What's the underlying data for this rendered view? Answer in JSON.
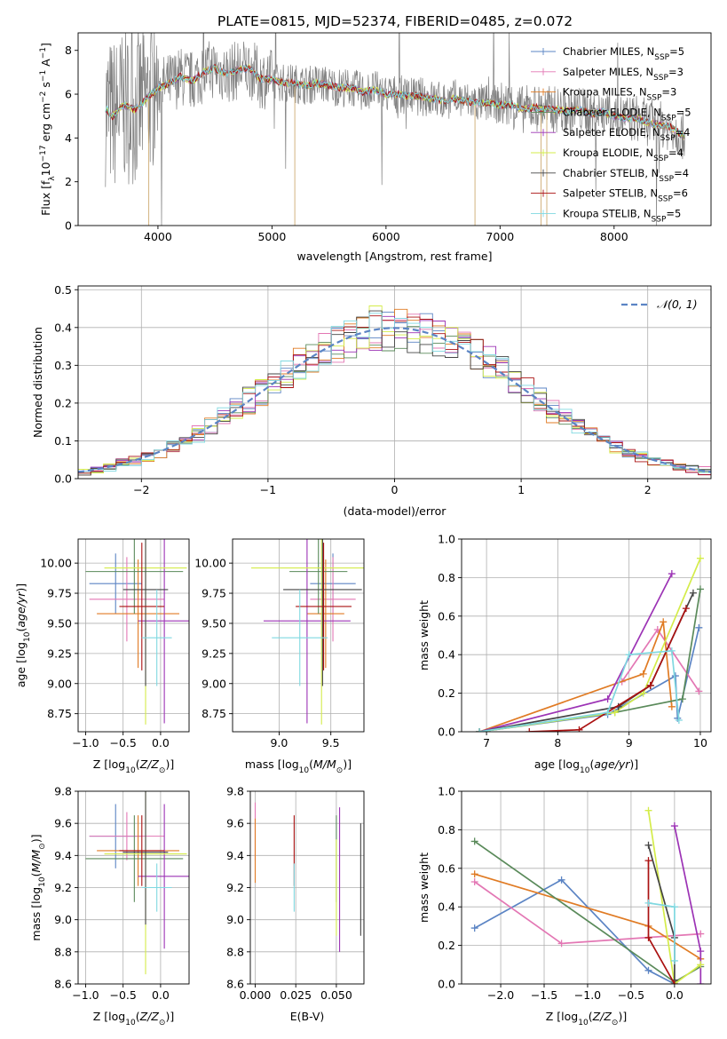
{
  "figure": {
    "title": "PLATE=0815, MJD=52374, FIBERID=0485, z=0.072"
  },
  "colors": {
    "chabrier_miles": "#5b84c4",
    "salpeter_miles": "#e377b4",
    "kroupa_miles": "#e07b24",
    "chabrier_elodie": "#5a8a5a",
    "salpeter_elodie": "#9c33b5",
    "kroupa_elodie": "#d4ec4a",
    "chabrier_stelib": "#444444",
    "salpeter_stelib": "#aa1111",
    "kroupa_stelib": "#7fd8e0",
    "data": "#808080",
    "normal": "#5b84c4"
  },
  "chart_data": [
    {
      "id": "spectrum",
      "type": "line",
      "title": "PLATE=0815, MJD=52374, FIBERID=0485, z=0.072",
      "xlabel": "wavelength [Angstrom, rest frame]",
      "ylabel": "Flux [f",
      "xlim": [
        3300,
        8850
      ],
      "ylim": [
        0,
        8.8
      ],
      "xticks": [
        4000,
        5000,
        6000,
        7000,
        8000
      ],
      "yticks": [
        0,
        2,
        4,
        6,
        8
      ],
      "legend_position": "top-right",
      "legend": [
        {
          "name": "Chabrier MILES, N",
          "n": "5",
          "color": "#5b84c4"
        },
        {
          "name": "Salpeter MILES, N",
          "n": "3",
          "color": "#e377b4"
        },
        {
          "name": "Kroupa MILES, N",
          "n": "3",
          "color": "#e07b24"
        },
        {
          "name": "Chabrier ELODIE, N",
          "n": "5",
          "color": "#5a8a5a"
        },
        {
          "name": "Salpeter ELODIE, N",
          "n": "4",
          "color": "#9c33b5"
        },
        {
          "name": "Kroupa ELODIE, N",
          "n": "4",
          "color": "#d4ec4a"
        },
        {
          "name": "Chabrier STELIB, N",
          "n": "4",
          "color": "#444444"
        },
        {
          "name": "Salpeter STELIB, N",
          "n": "6",
          "color": "#aa1111"
        },
        {
          "name": "Kroupa STELIB, N",
          "n": "5",
          "color": "#7fd8e0"
        }
      ],
      "continuum": {
        "x": [
          3550,
          3600,
          3700,
          3800,
          3900,
          4000,
          4100,
          4200,
          4300,
          4400,
          4500,
          4600,
          4700,
          4800,
          4900,
          5000,
          5100,
          5200,
          5300,
          5400,
          5500,
          5600,
          5700,
          5800,
          5900,
          6000,
          6100,
          6200,
          6300,
          6400,
          6500,
          6600,
          6700,
          6800,
          6900,
          7000,
          7100,
          7200,
          7300,
          7400,
          7500,
          7600,
          7700,
          7800,
          7900,
          8000,
          8100,
          8200,
          8300,
          8400,
          8500,
          8600
        ],
        "y": [
          5.3,
          5.0,
          5.5,
          5.3,
          5.8,
          6.3,
          6.5,
          6.8,
          6.6,
          7.0,
          7.2,
          6.9,
          7.1,
          7.2,
          6.7,
          6.7,
          6.5,
          6.5,
          6.4,
          6.5,
          6.4,
          6.3,
          6.3,
          6.1,
          6.2,
          6.0,
          6.0,
          5.9,
          5.9,
          5.8,
          5.7,
          5.8,
          5.7,
          5.6,
          5.6,
          5.5,
          5.5,
          5.3,
          5.4,
          5.3,
          5.3,
          5.2,
          5.3,
          5.1,
          5.2,
          5.0,
          4.9,
          4.9,
          4.7,
          4.6,
          4.5,
          4.1
        ]
      }
    },
    {
      "id": "residuals",
      "type": "line",
      "xlabel": "(data-model)/error",
      "ylabel": "Normed distribution",
      "xlim": [
        -2.5,
        2.5
      ],
      "ylim": [
        0,
        0.51
      ],
      "xticks": [
        -2,
        -1,
        0,
        1,
        2
      ],
      "yticks": [
        0.0,
        0.1,
        0.2,
        0.3,
        0.4,
        0.5
      ],
      "grid": true,
      "legend_position": "top-right",
      "legend": [
        {
          "name": "𝒩(0, 1)",
          "color": "#5b84c4",
          "style": "dashed"
        }
      ],
      "bin_width": 0.1
    },
    {
      "id": "age_vs_Z",
      "type": "scatter",
      "xlabel": "Z [log",
      "ylabel": "age  [log",
      "xlim": [
        -1.1,
        0.38
      ],
      "ylim": [
        8.6,
        10.2
      ],
      "xticks": [
        -1.0,
        -0.5,
        0.0
      ],
      "yticks": [
        8.75,
        9.0,
        9.25,
        9.5,
        9.75,
        10.0
      ],
      "grid": true,
      "points": [
        {
          "model": "Chabrier MILES",
          "x": -0.6,
          "y": 9.83,
          "xerr": 0.35,
          "yerr": 0.25,
          "color": "#5b84c4"
        },
        {
          "model": "Salpeter MILES",
          "x": -0.45,
          "y": 9.7,
          "xerr": 0.5,
          "yerr": 0.35,
          "color": "#e377b4"
        },
        {
          "model": "Kroupa MILES",
          "x": -0.3,
          "y": 9.58,
          "xerr": 0.55,
          "yerr": 0.45,
          "color": "#e07b24"
        },
        {
          "model": "Chabrier ELODIE",
          "x": -0.35,
          "y": 9.93,
          "xerr": 0.65,
          "yerr": 0.35,
          "color": "#5a8a5a"
        },
        {
          "model": "Salpeter ELODIE",
          "x": 0.05,
          "y": 9.52,
          "xerr": 0.35,
          "yerr": 0.85,
          "color": "#9c33b5"
        },
        {
          "model": "Kroupa ELODIE",
          "x": -0.2,
          "y": 9.96,
          "xerr": 0.55,
          "yerr": 1.3,
          "color": "#d4ec4a"
        },
        {
          "model": "Chabrier STELIB",
          "x": -0.2,
          "y": 9.78,
          "xerr": 0.3,
          "yerr": 0.8,
          "color": "#444444"
        },
        {
          "model": "Salpeter STELIB",
          "x": -0.25,
          "y": 9.64,
          "xerr": 0.3,
          "yerr": 0.53,
          "color": "#aa1111"
        },
        {
          "model": "Kroupa STELIB",
          "x": -0.05,
          "y": 9.38,
          "xerr": 0.2,
          "yerr": 0.4,
          "color": "#7fd8e0"
        }
      ]
    },
    {
      "id": "age_vs_mass",
      "type": "scatter",
      "xlabel": "mass [log",
      "xlim": [
        8.55,
        9.82
      ],
      "ylim": [
        8.6,
        10.2
      ],
      "xticks": [
        9.0,
        9.5
      ],
      "yticks": [
        8.75,
        9.0,
        9.25,
        9.5,
        9.75,
        10.0
      ],
      "grid": true,
      "points": [
        {
          "model": "Chabrier MILES",
          "x": 9.52,
          "y": 9.83,
          "xerr": 0.22,
          "yerr": 0.25,
          "color": "#5b84c4"
        },
        {
          "model": "Salpeter MILES",
          "x": 9.52,
          "y": 9.7,
          "xerr": 0.22,
          "yerr": 0.35,
          "color": "#e377b4"
        },
        {
          "model": "Kroupa MILES",
          "x": 9.45,
          "y": 9.58,
          "xerr": 0.18,
          "yerr": 0.45,
          "color": "#e07b24"
        },
        {
          "model": "Chabrier ELODIE",
          "x": 9.38,
          "y": 9.93,
          "xerr": 0.28,
          "yerr": 0.35,
          "color": "#5a8a5a"
        },
        {
          "model": "Salpeter ELODIE",
          "x": 9.27,
          "y": 9.52,
          "xerr": 0.42,
          "yerr": 0.85,
          "color": "#9c33b5"
        },
        {
          "model": "Kroupa ELODIE",
          "x": 9.41,
          "y": 9.96,
          "xerr": 0.68,
          "yerr": 1.3,
          "color": "#d4ec4a"
        },
        {
          "model": "Chabrier STELIB",
          "x": 9.42,
          "y": 9.78,
          "xerr": 0.38,
          "yerr": 0.8,
          "color": "#444444"
        },
        {
          "model": "Salpeter STELIB",
          "x": 9.43,
          "y": 9.64,
          "xerr": 0.27,
          "yerr": 0.53,
          "color": "#aa1111"
        },
        {
          "model": "Kroupa STELIB",
          "x": 9.2,
          "y": 9.38,
          "xerr": 0.27,
          "yerr": 0.4,
          "color": "#7fd8e0"
        }
      ]
    },
    {
      "id": "weight_vs_age",
      "type": "line",
      "xlabel": "age  [log",
      "ylabel": "mass weight",
      "xlim": [
        6.65,
        10.15
      ],
      "ylim": [
        0,
        1.0
      ],
      "xticks": [
        7,
        8,
        9,
        10
      ],
      "yticks": [
        0.0,
        0.2,
        0.4,
        0.6,
        0.8,
        1.0
      ],
      "grid": true,
      "series": [
        {
          "model": "Chabrier MILES",
          "color": "#5b84c4",
          "x": [
            6.9,
            8.7,
            9.65,
            9.68,
            9.98
          ],
          "y": [
            0.0,
            0.09,
            0.29,
            0.07,
            0.54
          ]
        },
        {
          "model": "Salpeter MILES",
          "color": "#e377b4",
          "x": [
            8.9,
            9.4,
            9.98
          ],
          "y": [
            0.26,
            0.53,
            0.21
          ]
        },
        {
          "model": "Kroupa MILES",
          "color": "#e07b24",
          "x": [
            6.9,
            9.2,
            9.48,
            9.6
          ],
          "y": [
            0.0,
            0.3,
            0.57,
            0.13
          ]
        },
        {
          "model": "Chabrier ELODIE",
          "color": "#5a8a5a",
          "x": [
            6.9,
            8.8,
            9.75,
            10.0
          ],
          "y": [
            0.0,
            0.1,
            0.17,
            0.74
          ]
        },
        {
          "model": "Salpeter ELODIE",
          "color": "#9c33b5",
          "x": [
            6.9,
            8.7,
            9.6
          ],
          "y": [
            0.0,
            0.17,
            0.82
          ]
        },
        {
          "model": "Kroupa ELODIE",
          "color": "#d4ec4a",
          "x": [
            6.9,
            8.8,
            9.2,
            10.0
          ],
          "y": [
            0.0,
            0.1,
            0.2,
            0.9
          ]
        },
        {
          "model": "Chabrier STELIB",
          "color": "#444444",
          "x": [
            6.9,
            8.85,
            9.3,
            9.9
          ],
          "y": [
            0.0,
            0.13,
            0.24,
            0.72
          ]
        },
        {
          "model": "Salpeter STELIB",
          "color": "#aa1111",
          "x": [
            7.6,
            8.3,
            9.3,
            9.8
          ],
          "y": [
            0.0,
            0.01,
            0.24,
            0.64
          ]
        },
        {
          "model": "Kroupa STELIB",
          "color": "#7fd8e0",
          "x": [
            6.9,
            8.7,
            9.0,
            9.6,
            9.7
          ],
          "y": [
            0.0,
            0.1,
            0.4,
            0.42,
            0.06
          ]
        }
      ]
    },
    {
      "id": "mass_vs_Z",
      "type": "scatter",
      "xlabel": "Z [log",
      "ylabel": "mass [log",
      "xlim": [
        -1.1,
        0.38
      ],
      "ylim": [
        8.6,
        9.8
      ],
      "xticks": [
        -1.0,
        -0.5,
        0.0
      ],
      "yticks": [
        8.6,
        8.8,
        9.0,
        9.2,
        9.4,
        9.6,
        9.8
      ],
      "grid": true,
      "points": [
        {
          "model": "Chabrier MILES",
          "x": -0.6,
          "y": 9.52,
          "xerr": 0.35,
          "yerr": 0.2,
          "color": "#5b84c4"
        },
        {
          "model": "Salpeter MILES",
          "x": -0.45,
          "y": 9.52,
          "xerr": 0.5,
          "yerr": 0.15,
          "color": "#e377b4"
        },
        {
          "model": "Kroupa MILES",
          "x": -0.3,
          "y": 9.43,
          "xerr": 0.55,
          "yerr": 0.22,
          "color": "#e07b24"
        },
        {
          "model": "Chabrier ELODIE",
          "x": -0.35,
          "y": 9.38,
          "xerr": 0.65,
          "yerr": 0.27,
          "color": "#5a8a5a"
        },
        {
          "model": "Salpeter ELODIE",
          "x": 0.05,
          "y": 9.27,
          "xerr": 0.35,
          "yerr": 0.45,
          "color": "#9c33b5"
        },
        {
          "model": "Kroupa ELODIE",
          "x": -0.2,
          "y": 9.41,
          "xerr": 0.55,
          "yerr": 0.75,
          "color": "#d4ec4a"
        },
        {
          "model": "Chabrier STELIB",
          "x": -0.2,
          "y": 9.42,
          "xerr": 0.3,
          "yerr": 0.45,
          "color": "#444444"
        },
        {
          "model": "Salpeter STELIB",
          "x": -0.25,
          "y": 9.43,
          "xerr": 0.3,
          "yerr": 0.22,
          "color": "#aa1111"
        },
        {
          "model": "Kroupa STELIB",
          "x": -0.05,
          "y": 9.2,
          "xerr": 0.2,
          "yerr": 0.15,
          "color": "#7fd8e0"
        }
      ]
    },
    {
      "id": "mass_vs_ebv",
      "type": "scatter",
      "xlabel": "E(B-V)",
      "xlim": [
        -0.003,
        0.067
      ],
      "ylim": [
        8.6,
        9.8
      ],
      "xticks": [
        0.0,
        0.025,
        0.05
      ],
      "xtick_labels": [
        "0.000",
        "0.025",
        "0.050"
      ],
      "yticks": [
        8.6,
        8.8,
        9.0,
        9.2,
        9.4,
        9.6,
        9.8
      ],
      "grid": true,
      "points": [
        {
          "model": "Salpeter MILES",
          "x": 0.0,
          "y": 9.55,
          "yerr": 0.18,
          "color": "#e377b4"
        },
        {
          "model": "Kroupa MILES",
          "x": 0.0,
          "y": 9.43,
          "yerr": 0.2,
          "color": "#e07b24"
        },
        {
          "model": "Salpeter STELIB",
          "x": 0.024,
          "y": 9.43,
          "yerr": 0.22,
          "color": "#aa1111"
        },
        {
          "model": "Kroupa STELIB",
          "x": 0.024,
          "y": 9.2,
          "yerr": 0.15,
          "color": "#7fd8e0"
        },
        {
          "model": "Chabrier ELODIE",
          "x": 0.05,
          "y": 9.38,
          "yerr": 0.27,
          "color": "#5a8a5a"
        },
        {
          "model": "Kroupa ELODIE",
          "x": 0.05,
          "y": 9.2,
          "yerr": 0.3,
          "color": "#d4ec4a"
        },
        {
          "model": "Salpeter ELODIE",
          "x": 0.052,
          "y": 9.25,
          "yerr": 0.45,
          "color": "#9c33b5"
        },
        {
          "model": "Chabrier STELIB",
          "x": 0.065,
          "y": 9.25,
          "yerr": 0.35,
          "color": "#444444"
        }
      ]
    },
    {
      "id": "weight_vs_Z",
      "type": "line",
      "xlabel": "Z [log",
      "ylabel": "mass weight",
      "xlim": [
        -2.45,
        0.42
      ],
      "ylim": [
        0,
        1.0
      ],
      "xticks": [
        -2.0,
        -1.5,
        -1.0,
        -0.5,
        0.0
      ],
      "yticks": [
        0.0,
        0.2,
        0.4,
        0.6,
        0.8,
        1.0
      ],
      "grid": true,
      "series": [
        {
          "model": "Chabrier MILES",
          "color": "#5b84c4",
          "x": [
            -2.3,
            -1.3,
            -0.3,
            0.0
          ],
          "y": [
            0.29,
            0.54,
            0.07,
            0.0
          ]
        },
        {
          "model": "Salpeter MILES",
          "color": "#e377b4",
          "x": [
            -2.3,
            -1.3,
            0.3
          ],
          "y": [
            0.53,
            0.21,
            0.26
          ]
        },
        {
          "model": "Kroupa MILES",
          "color": "#e07b24",
          "x": [
            -2.3,
            -0.3,
            0.3
          ],
          "y": [
            0.57,
            0.3,
            0.13
          ]
        },
        {
          "model": "Chabrier ELODIE",
          "color": "#5a8a5a",
          "x": [
            -2.3,
            0.0,
            0.3
          ],
          "y": [
            0.74,
            0.01,
            0.09
          ]
        },
        {
          "model": "Salpeter ELODIE",
          "color": "#9c33b5",
          "x": [
            0.0,
            0.3,
            0.3
          ],
          "y": [
            0.82,
            0.17,
            0.0
          ]
        },
        {
          "model": "Kroupa ELODIE",
          "color": "#d4ec4a",
          "x": [
            -0.3,
            0.0,
            0.3
          ],
          "y": [
            0.9,
            0.0,
            0.1
          ]
        },
        {
          "model": "Chabrier STELIB",
          "color": "#444444",
          "x": [
            -0.3,
            0.0,
            0.0
          ],
          "y": [
            0.72,
            0.24,
            0.02
          ]
        },
        {
          "model": "Salpeter STELIB",
          "color": "#aa1111",
          "x": [
            -0.3,
            -0.3,
            0.0
          ],
          "y": [
            0.64,
            0.24,
            0.0
          ]
        },
        {
          "model": "Kroupa STELIB",
          "color": "#7fd8e0",
          "x": [
            -0.3,
            0.0,
            0.0
          ],
          "y": [
            0.42,
            0.4,
            0.12
          ]
        }
      ]
    }
  ]
}
